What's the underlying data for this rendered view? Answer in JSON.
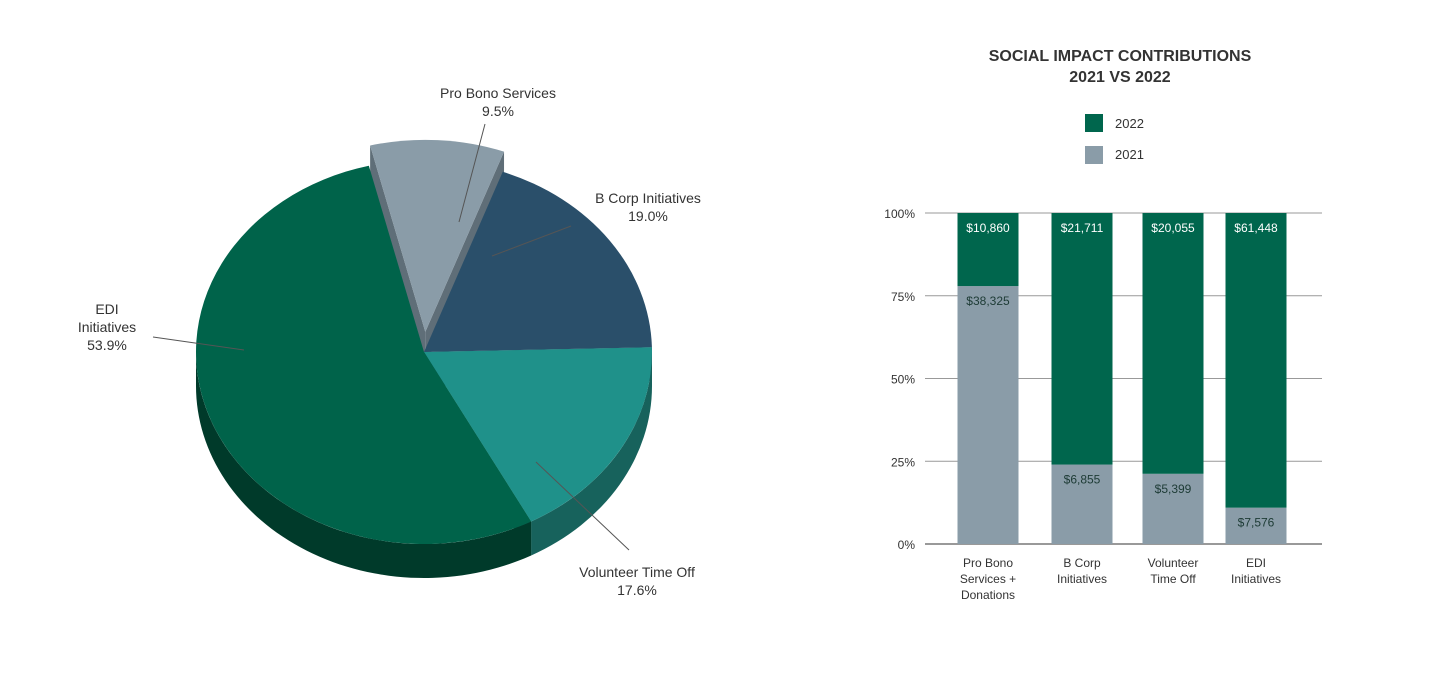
{
  "colors": {
    "edi": "#00634a",
    "edi_side": "#003a2a",
    "volunteer": "#1f918a",
    "volunteer_side": "#17625c",
    "bcorp": "#2a4f6a",
    "bcorp_side": "#1b3245",
    "probono": "#8a9ca8",
    "probono_side": "#5f6e78",
    "bar_2022": "#00664d",
    "bar_2021": "#8a9ca8",
    "grid": "#999999",
    "text": "#333333"
  },
  "chart_data": [
    {
      "type": "pie",
      "title": "",
      "slices": [
        {
          "label": "Pro Bono Services",
          "percent_label": "9.5%",
          "value": 9.5,
          "color_key": "probono"
        },
        {
          "label": "B Corp Initiatives",
          "percent_label": "19.0%",
          "value": 19.0,
          "color_key": "bcorp"
        },
        {
          "label": "Volunteer Time Off",
          "percent_label": "17.6%",
          "value": 17.6,
          "color_key": "volunteer"
        },
        {
          "label_lines": [
            "EDI",
            "Initiatives"
          ],
          "percent_label": "53.9%",
          "value": 53.9,
          "color_key": "edi"
        }
      ]
    },
    {
      "type": "bar",
      "stacked": true,
      "normalized": true,
      "title_lines": [
        "SOCIAL IMPACT CONTRIBUTIONS",
        "2021 VS 2022"
      ],
      "legend": [
        {
          "name": "2022",
          "color_key": "bar_2022"
        },
        {
          "name": "2021",
          "color_key": "bar_2021"
        }
      ],
      "legend_position": "top",
      "yticks": [
        "0%",
        "25%",
        "50%",
        "75%",
        "100%"
      ],
      "ylim": [
        0,
        100
      ],
      "grid": true,
      "categories": [
        [
          "Pro Bono",
          "Services +",
          "Donations"
        ],
        [
          "B Corp",
          "Initiatives"
        ],
        [
          "Volunteer",
          "Time Off"
        ],
        [
          "EDI",
          "Initiatives"
        ]
      ],
      "series": [
        {
          "name": "2021",
          "values": [
            38325,
            6855,
            5399,
            7576
          ],
          "labels": [
            "$38,325",
            "$6,855",
            "$5,399",
            "$7,576"
          ]
        },
        {
          "name": "2022",
          "values": [
            10860,
            21711,
            20055,
            61448
          ],
          "labels": [
            "$10,860",
            "$21,711",
            "$20,055",
            "$61,448"
          ]
        }
      ]
    }
  ]
}
